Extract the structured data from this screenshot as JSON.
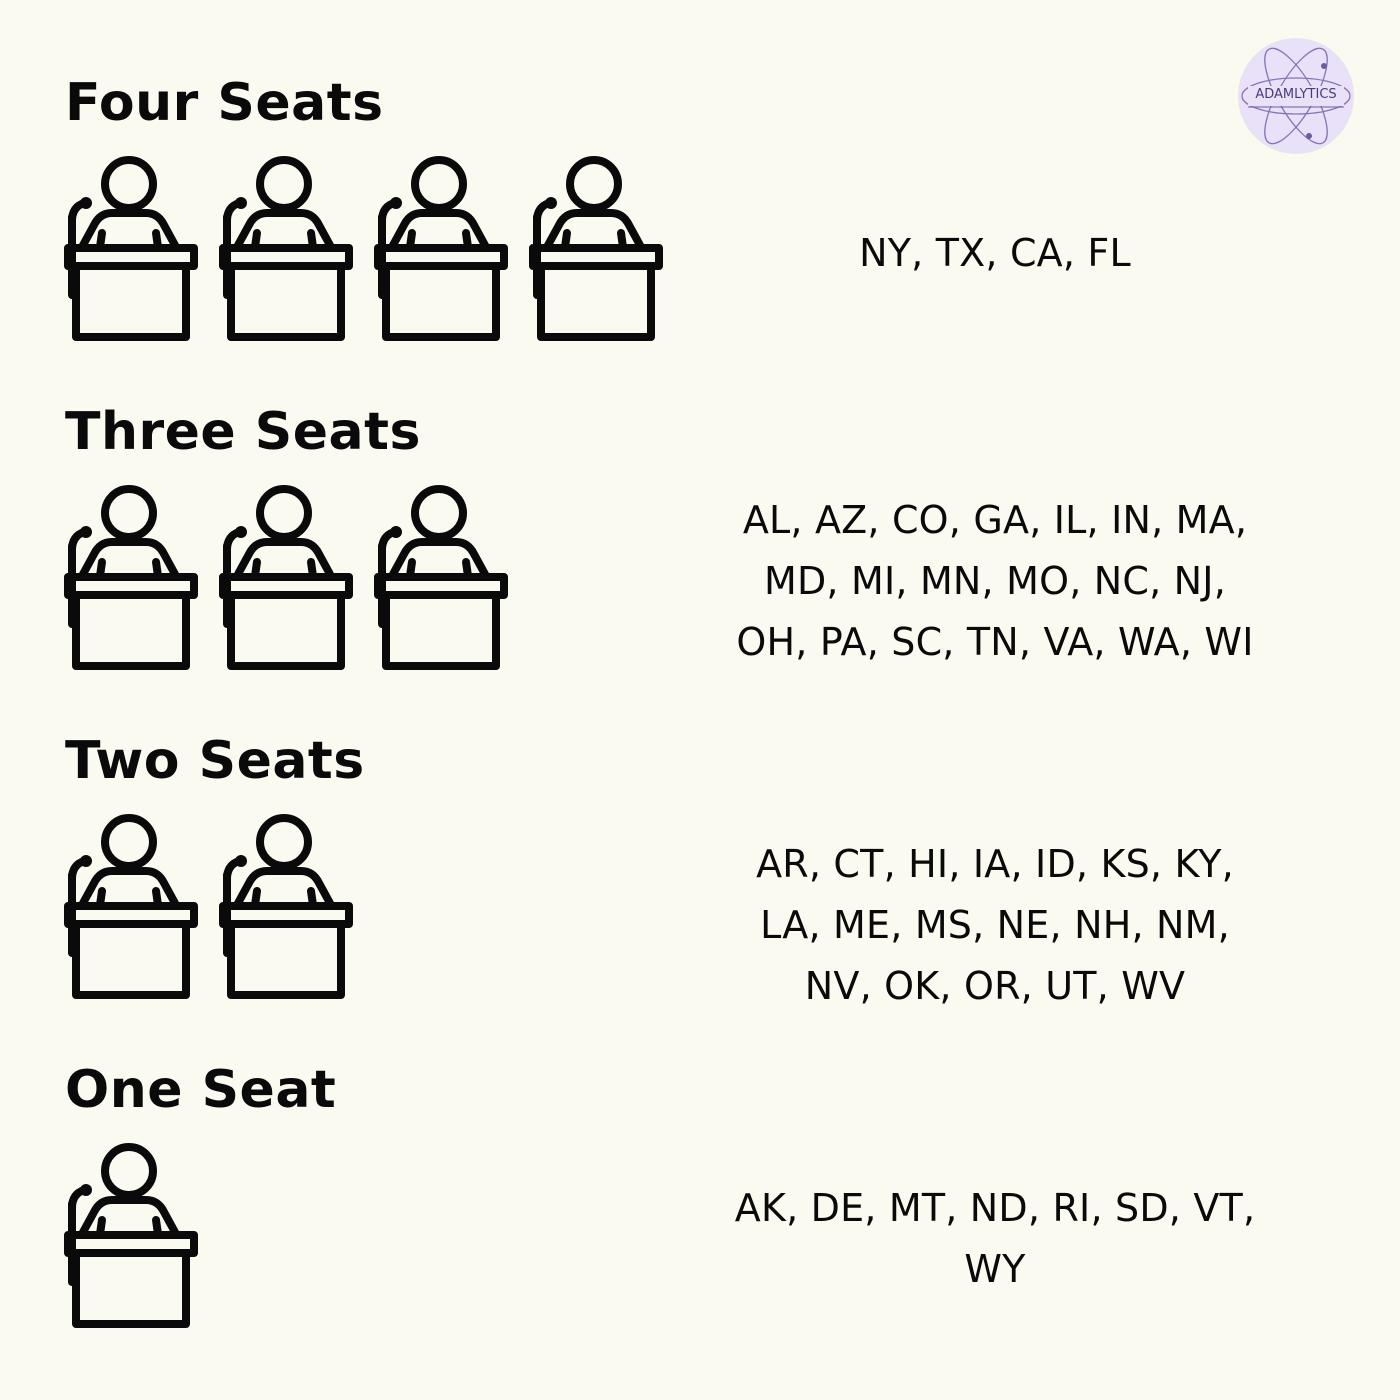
{
  "logo": {
    "text": "ADAMLYTICS",
    "accent": "#e6dcf7"
  },
  "sections": [
    {
      "title": "Four Seats",
      "seats": 4,
      "states": "NY, TX, CA, FL"
    },
    {
      "title": "Three Seats",
      "seats": 3,
      "states_lines": [
        "AL, AZ, CO, GA, IL, IN, MA,",
        "MD, MI, MN, MO, NC, NJ,",
        "OH, PA, SC, TN, VA, WA, WI"
      ]
    },
    {
      "title": "Two Seats",
      "seats": 2,
      "states_lines": [
        "AR, CT, HI, IA, ID, KS, KY,",
        "LA, ME, MS, NE, NH, NM,",
        "NV, OK, OR, UT, WV"
      ]
    },
    {
      "title": "One Seat",
      "seats": 1,
      "states_lines": [
        "AK, DE, MT, ND, RI, SD, VT,",
        "WY"
      ]
    }
  ],
  "icon": {
    "name": "podium-speaker-icon",
    "color": "#0a0a0a"
  }
}
